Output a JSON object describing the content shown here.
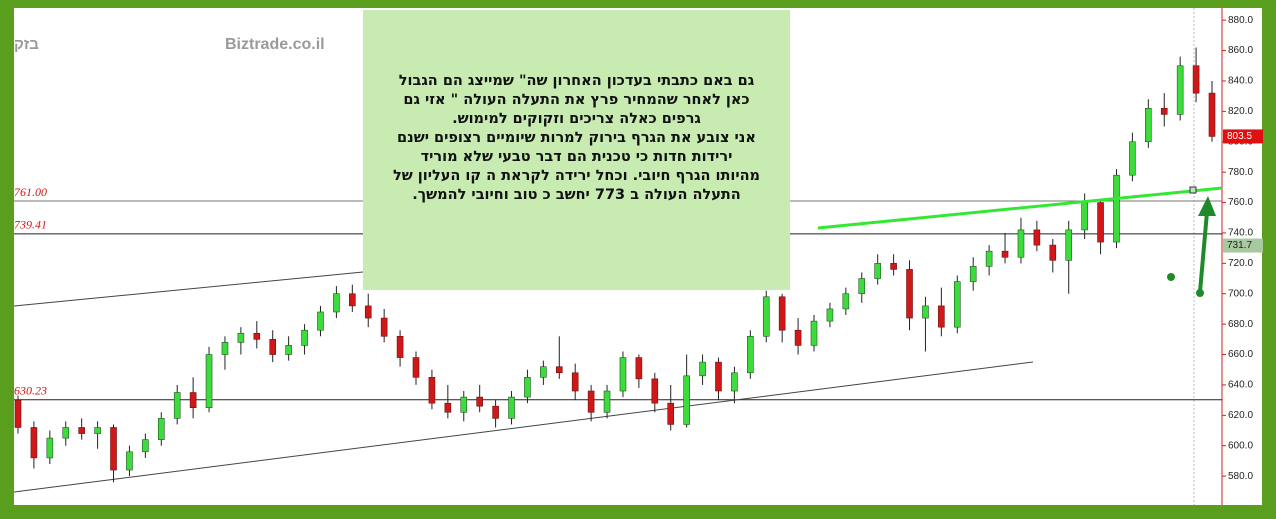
{
  "chart_data": {
    "type": "candlestick",
    "watermark": "בזק",
    "source": "Biztrade.co.il",
    "open": [
      630,
      612,
      592,
      605,
      612,
      608,
      612,
      584,
      596,
      604,
      618,
      635,
      625,
      660,
      668,
      674,
      670,
      660,
      666,
      676,
      688,
      700,
      692,
      684,
      672,
      658,
      645,
      628,
      622,
      632,
      626,
      618,
      632,
      645,
      652,
      648,
      636,
      622,
      636,
      658,
      644,
      628,
      614,
      646,
      655,
      636,
      648,
      672,
      698,
      676,
      666,
      682,
      690,
      700,
      710,
      720,
      716,
      684,
      692,
      678,
      708,
      718,
      728,
      724,
      742,
      732,
      722,
      742,
      760,
      734,
      778,
      800,
      822,
      818,
      850,
      832
    ],
    "high": [
      633,
      616,
      610,
      616,
      618,
      616,
      614,
      600,
      608,
      622,
      640,
      645,
      665,
      672,
      678,
      682,
      676,
      672,
      680,
      692,
      705,
      706,
      700,
      690,
      676,
      662,
      650,
      640,
      636,
      640,
      630,
      636,
      650,
      656,
      672,
      654,
      640,
      640,
      662,
      660,
      648,
      640,
      660,
      660,
      658,
      652,
      676,
      702,
      700,
      684,
      686,
      694,
      704,
      714,
      726,
      726,
      722,
      698,
      704,
      712,
      724,
      732,
      740,
      750,
      748,
      736,
      748,
      766,
      762,
      782,
      806,
      828,
      832,
      856,
      862,
      840
    ],
    "low": [
      608,
      585,
      588,
      600,
      604,
      598,
      576,
      580,
      592,
      600,
      614,
      618,
      622,
      650,
      660,
      664,
      655,
      656,
      660,
      672,
      684,
      688,
      678,
      668,
      652,
      640,
      624,
      618,
      616,
      622,
      612,
      614,
      628,
      640,
      644,
      630,
      616,
      618,
      632,
      638,
      622,
      610,
      612,
      640,
      630,
      628,
      644,
      668,
      668,
      660,
      662,
      678,
      686,
      694,
      706,
      712,
      676,
      662,
      672,
      674,
      702,
      712,
      720,
      720,
      728,
      714,
      700,
      736,
      726,
      730,
      774,
      796,
      810,
      814,
      826,
      800
    ],
    "close": [
      612,
      592,
      605,
      612,
      608,
      612,
      584,
      596,
      604,
      618,
      635,
      625,
      660,
      668,
      674,
      670,
      660,
      666,
      676,
      688,
      700,
      692,
      684,
      672,
      658,
      645,
      628,
      622,
      632,
      626,
      618,
      632,
      645,
      652,
      648,
      636,
      622,
      636,
      658,
      644,
      628,
      614,
      646,
      655,
      636,
      648,
      672,
      698,
      676,
      666,
      682,
      690,
      700,
      710,
      720,
      716,
      684,
      692,
      678,
      708,
      718,
      728,
      724,
      742,
      732,
      722,
      742,
      760,
      734,
      778,
      800,
      822,
      818,
      850,
      832,
      803.5
    ],
    "up_color": "#3ddc3d",
    "down_color": "#d01818",
    "ylim": [
      561,
      888
    ],
    "yticks": [
      {
        "value": 580,
        "label": "580.0"
      },
      {
        "value": 600,
        "label": "600.0"
      },
      {
        "value": 620,
        "label": "620.0"
      },
      {
        "value": 640,
        "label": "640.0"
      },
      {
        "value": 660,
        "label": "660.0"
      },
      {
        "value": 680,
        "label": "680.0"
      },
      {
        "value": 700,
        "label": "700.0"
      },
      {
        "value": 720,
        "label": "720.0"
      },
      {
        "value": 740,
        "label": "740.0"
      },
      {
        "value": 760,
        "label": "760.0"
      },
      {
        "value": 780,
        "label": "780.0"
      },
      {
        "value": 800,
        "label": "800.0"
      },
      {
        "value": 820,
        "label": "820.0"
      },
      {
        "value": 840,
        "label": "840.0"
      },
      {
        "value": 860,
        "label": "860.0"
      },
      {
        "value": 880,
        "label": "880.0"
      }
    ],
    "levels": [
      {
        "value": 761.0,
        "label": "761.00"
      },
      {
        "value": 739.41,
        "label": "739.41"
      },
      {
        "value": 630.23,
        "label": "630.23"
      }
    ],
    "price_labels": [
      {
        "value": 803.5,
        "label": "803.5",
        "color": "#e01010"
      },
      {
        "value": 731.7,
        "label": "731.7",
        "color": "#a8c8a0"
      }
    ],
    "note": [
      "גם באם כתבתי בעדכון האחרון שה\" שמייצג הם הגבול",
      "כאן לאחר שהמחיר פרץ את התעלה העולה \" אזי גם",
      "גרפים כאלה צריכים וזקוקים למימוש.",
      "אני צובע את הגרף בירוק למרות שיומיים רצופים ישנם",
      "ירידות חדות כי טכנית הם דבר טבעי שלא מוריד",
      "מהיותו הגרף חיובי. וכחל ירידה לקראת ה קו העליון של",
      "התעלה העולה ב 773 יחשב כ טוב וחיובי להמשך."
    ]
  }
}
